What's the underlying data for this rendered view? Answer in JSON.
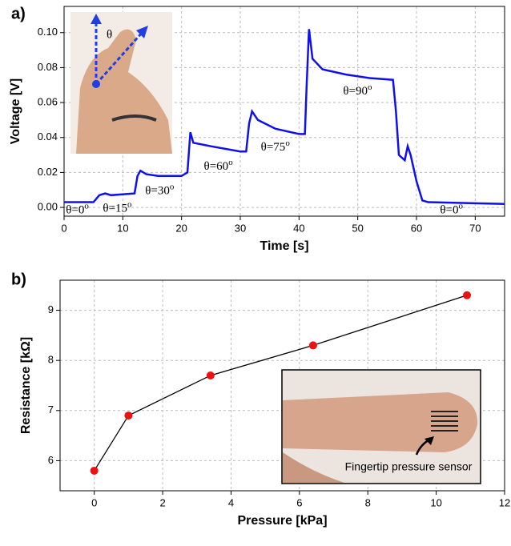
{
  "chart_data": [
    {
      "type": "line",
      "panel_label": "a)",
      "xlabel": "Time [s]",
      "ylabel": "Voltage [V]",
      "xlim": [
        0,
        75
      ],
      "ylim": [
        -0.005,
        0.115
      ],
      "xticks": [
        0,
        10,
        20,
        30,
        40,
        50,
        60,
        70
      ],
      "yticks": [
        {
          "value": 0,
          "label": "0.00"
        },
        {
          "value": 0.02,
          "label": "0.02"
        },
        {
          "value": 0.04,
          "label": "0.04"
        },
        {
          "value": 0.06,
          "label": "0.06"
        },
        {
          "value": 0.08,
          "label": "0.08"
        },
        {
          "value": 0.1,
          "label": "0.10"
        }
      ],
      "grid": true,
      "markers": false,
      "series": [
        {
          "color": "#1010ee",
          "x": [
            0,
            5,
            6,
            7,
            8,
            12,
            12.5,
            13,
            14,
            16,
            20,
            21,
            21.5,
            22,
            25,
            30,
            31,
            31.5,
            32,
            33,
            36,
            40,
            41,
            41.3,
            41.7,
            42.3,
            44,
            48,
            52,
            56,
            56.5,
            57,
            58,
            58.5,
            59,
            60,
            61,
            62,
            75
          ],
          "values": [
            0.003,
            0.003,
            0.007,
            0.008,
            0.007,
            0.008,
            0.018,
            0.021,
            0.019,
            0.018,
            0.018,
            0.02,
            0.043,
            0.037,
            0.035,
            0.032,
            0.032,
            0.048,
            0.055,
            0.05,
            0.045,
            0.042,
            0.042,
            0.07,
            0.102,
            0.085,
            0.079,
            0.076,
            0.074,
            0.073,
            0.055,
            0.03,
            0.027,
            0.035,
            0.03,
            0.015,
            0.004,
            0.003,
            0.002
          ]
        }
      ],
      "annotations": [
        {
          "text": "θ=0",
          "sup": "o"
        },
        {
          "text": "θ=15",
          "sup": "o"
        },
        {
          "text": "θ=30",
          "sup": "o"
        },
        {
          "text": "θ=60",
          "sup": "o"
        },
        {
          "text": "θ=75",
          "sup": "o"
        },
        {
          "text": "θ=90",
          "sup": "o"
        },
        {
          "text": "θ=0",
          "sup": "o"
        }
      ],
      "inset_label": "θ"
    },
    {
      "type": "line",
      "panel_label": "b)",
      "xlabel": "Pressure [kPa]",
      "ylabel": "Resistance [kΩ]",
      "xlim": [
        -1,
        12
      ],
      "ylim": [
        5.4,
        9.6
      ],
      "xticks": [
        0,
        2,
        4,
        6,
        8,
        10,
        12
      ],
      "yticks": [
        6,
        7,
        8,
        9
      ],
      "grid": true,
      "markers": true,
      "series": [
        {
          "color": "#000000",
          "marker_color": "#ee1111",
          "x": [
            0,
            1,
            3.4,
            6.4,
            10.9
          ],
          "values": [
            5.8,
            6.9,
            7.7,
            8.3,
            9.3
          ]
        }
      ],
      "inset_label": "Fingertip pressure sensor"
    }
  ]
}
